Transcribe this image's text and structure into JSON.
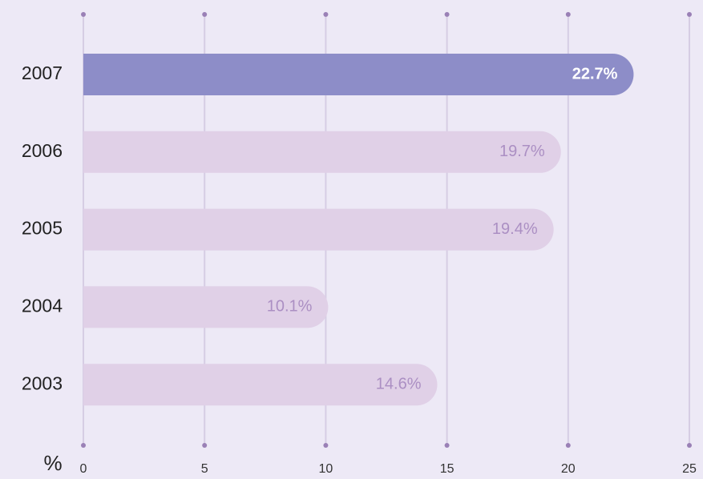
{
  "chart_data": {
    "type": "bar",
    "orientation": "horizontal",
    "categories": [
      "2007",
      "2006",
      "2005",
      "2004",
      "2003"
    ],
    "values": [
      22.7,
      19.7,
      19.4,
      10.1,
      14.6
    ],
    "value_labels": [
      "22.7%",
      "19.7%",
      "19.4%",
      "10.1%",
      "14.6%"
    ],
    "colors": [
      "#8d8dc8",
      "#e0d0e7",
      "#e0d0e7",
      "#e0d0e7",
      "#e0d0e7"
    ],
    "label_colors": [
      "#ffffff",
      "#ab8fc3",
      "#ab8fc3",
      "#ab8fc3",
      "#ab8fc3"
    ],
    "x_label": "%",
    "xlim": [
      0,
      25
    ],
    "xticks": [
      0,
      5,
      10,
      15,
      20,
      25
    ],
    "grid": true
  }
}
